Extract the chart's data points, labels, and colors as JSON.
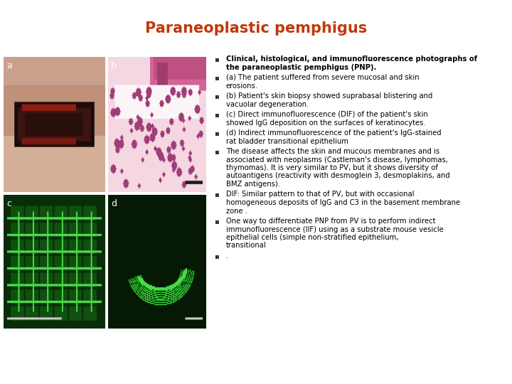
{
  "title": "Paraneoplastic pemphigus",
  "title_color": "#c0390a",
  "title_fontsize": 15,
  "background_color": "#ffffff",
  "bullet_points": [
    {
      "text": "Clinical, histological, and immunofluorescence photographs of the paraneoplastic pemphigus (PNP).",
      "bold": true
    },
    {
      "text": "(a) The patient suffered from severe mucosal and skin erosions.",
      "bold": false
    },
    {
      "text": "(b) Patient's skin biopsy showed suprabasal blistering and vacuolar degeneration.",
      "bold": false
    },
    {
      "text": "(c) Direct immunofluorescence (DIF) of the patient's skin showed IgG deposition on the surfaces of keratinocytes.",
      "bold": false
    },
    {
      "text": "(d) Indirect immunofluorescence of the patient's IgG-stained rat bladder transitional epithelium",
      "bold": false
    },
    {
      "text": "The disease affects the skin and mucous membranes and is associated with neoplasms (Castleman's disease, lymphomas, thymomas). It is very similar to PV, but it shows diversity of autoantigens (reactivity with desmoglein 3, desmoplakins, and BMZ antigens).",
      "bold": false
    },
    {
      "text": "DIF: Similar pattern to that of PV, but with occasional homogeneous deposits of IgG and C3 in the basement membrane zone .",
      "bold": false
    },
    {
      "text": "One way to differentiate PNP from PV is to perform indirect immunofluorescence (IIF) using as a substrate mouse vesicle epithelial cells (simple non-stratified epithelium, transitional",
      "bold": false
    },
    {
      "text": ".",
      "bold": false
    }
  ],
  "text_fontsize": 7.2,
  "bold_prefix_items": [
    0
  ],
  "label_color": "#ffffff",
  "bullet_char": "▪"
}
